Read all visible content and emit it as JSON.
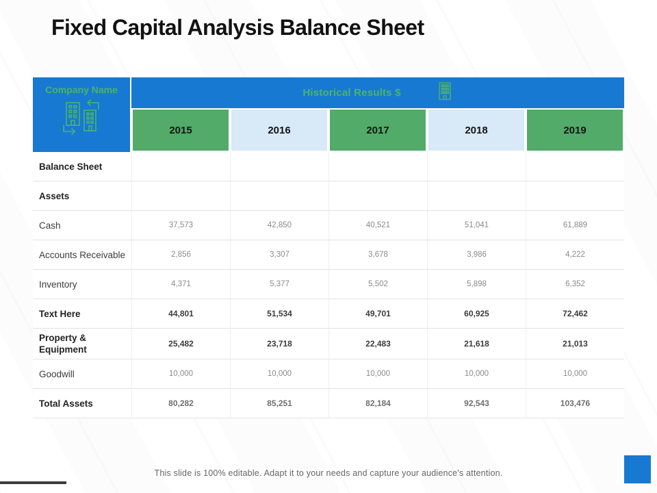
{
  "slide": {
    "title": "Fixed Capital Analysis Balance Sheet",
    "footer": "This slide is 100% editable. Adapt it to your needs and capture your audience's attention."
  },
  "colors": {
    "header_blue": "#1879d3",
    "cell_green": "#52ab68",
    "cell_light_blue": "#d8e9f8",
    "green_text": "#4bb466",
    "accent_square_blue": "#1879d3",
    "corner_line_dark": "#3d3d3d"
  },
  "icons": {
    "company_icon": "buildings-transfer-icon",
    "results_icon": "building-icon"
  },
  "table": {
    "company_header": "Company Name",
    "results_header": "Historical Results $",
    "years": [
      "2015",
      "2016",
      "2017",
      "2018",
      "2019"
    ],
    "rows": [
      {
        "label": "Balance Sheet",
        "bold": true,
        "emphasis": "normal",
        "values": [
          "",
          "",
          "",
          "",
          ""
        ]
      },
      {
        "label": "Assets",
        "bold": true,
        "emphasis": "normal",
        "values": [
          "",
          "",
          "",
          "",
          ""
        ]
      },
      {
        "label": "Cash",
        "bold": false,
        "emphasis": "normal",
        "values": [
          "37,573",
          "42,850",
          "40,521",
          "51,041",
          "61,889"
        ]
      },
      {
        "label": "Accounts Receivable",
        "bold": false,
        "emphasis": "normal",
        "values": [
          "2,856",
          "3,307",
          "3,678",
          "3,986",
          "4,222"
        ]
      },
      {
        "label": "Inventory",
        "bold": false,
        "emphasis": "normal",
        "values": [
          "4,371",
          "5,377",
          "5,502",
          "5,898",
          "6,352"
        ]
      },
      {
        "label": "Text Here",
        "bold": true,
        "emphasis": "bold-dark",
        "values": [
          "44,801",
          "51,534",
          "49,701",
          "60,925",
          "72,462"
        ]
      },
      {
        "label": "Property & Equipment",
        "bold": true,
        "emphasis": "bold-dark",
        "values": [
          "25,482",
          "23,718",
          "22,483",
          "21,618",
          "21,013"
        ]
      },
      {
        "label": "Goodwill",
        "bold": false,
        "emphasis": "normal",
        "values": [
          "10,000",
          "10,000",
          "10,000",
          "10,000",
          "10,000"
        ]
      },
      {
        "label": "Total Assets",
        "bold": true,
        "emphasis": "bold-gray",
        "values": [
          "80,282",
          "85,251",
          "82,184",
          "92,543",
          "103,476"
        ]
      }
    ]
  }
}
